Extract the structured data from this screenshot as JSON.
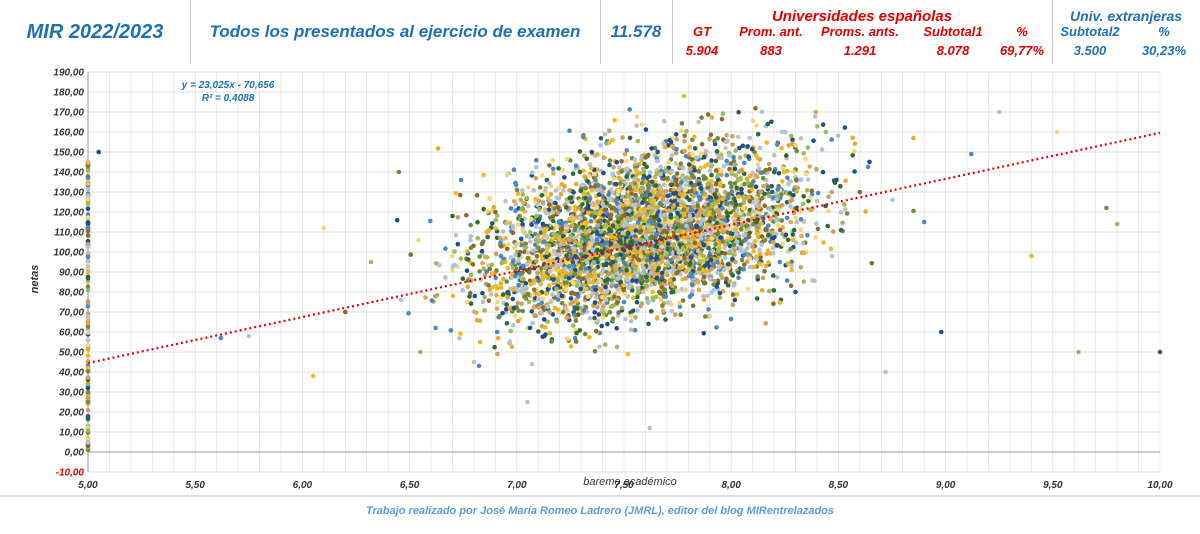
{
  "header": {
    "title": "MIR 2022/2023",
    "subtitle": "Todos los presentados al ejercicio de examen",
    "total": "11.578",
    "spanish_group": {
      "label": "Universidades españolas",
      "columns": [
        {
          "label": "GT",
          "value": "5.904"
        },
        {
          "label": "Prom. ant.",
          "value": "883"
        },
        {
          "label": "Proms. ants.",
          "value": "1.291"
        },
        {
          "label": "Subtotal1",
          "value": "8.078"
        },
        {
          "label": "%",
          "value": "69,77%"
        }
      ]
    },
    "foreign_group": {
      "label": "Univ. extranjeras",
      "columns": [
        {
          "label": "Subtotal2",
          "value": "3.500"
        },
        {
          "label": "%",
          "value": "30,23%"
        }
      ]
    },
    "colors": {
      "blue": "#1f6fb5",
      "red": "#e00000"
    }
  },
  "chart_data": {
    "type": "scatter",
    "xlabel": "baremo académico",
    "ylabel": "netas",
    "xlim": [
      5.0,
      10.0
    ],
    "ylim": [
      -10.0,
      190.0
    ],
    "x_ticks": [
      "5,00",
      "5,50",
      "6,00",
      "6,50",
      "7,00",
      "7,50",
      "8,00",
      "8,50",
      "9,00",
      "9,50",
      "10,00"
    ],
    "y_ticks": [
      "-10,00",
      "0,00",
      "10,00",
      "20,00",
      "30,00",
      "40,00",
      "50,00",
      "60,00",
      "70,00",
      "80,00",
      "90,00",
      "100,00",
      "110,00",
      "120,00",
      "130,00",
      "140,00",
      "150,00",
      "160,00",
      "170,00",
      "180,00",
      "190,00"
    ],
    "grid": true,
    "trendline": {
      "slope": 23.025,
      "intercept": -70.656,
      "r2": 0.4088,
      "equation_label": "y = 23,025x - 70,656",
      "r2_label": "R² = 0,4088",
      "color": "#e00000"
    },
    "point_colors": [
      "#1f4e8c",
      "#4a86c8",
      "#a9c4e6",
      "#f2b81c",
      "#f7d774",
      "#c8a060",
      "#6e8b3d",
      "#9bbb59",
      "#2e6b2e",
      "#8c6a2e",
      "#c0c0c0",
      "#e8a838"
    ],
    "points": [
      [
        5.05,
        150
      ],
      [
        5.62,
        57
      ],
      [
        5.75,
        58
      ],
      [
        6.05,
        38
      ],
      [
        6.1,
        112
      ],
      [
        6.32,
        95
      ],
      [
        6.45,
        140
      ],
      [
        6.55,
        50
      ],
      [
        6.7,
        118
      ],
      [
        6.9,
        120
      ],
      [
        7.05,
        25
      ],
      [
        7.22,
        104
      ],
      [
        7.35,
        150
      ],
      [
        7.5,
        75
      ],
      [
        7.62,
        12
      ],
      [
        7.78,
        178
      ],
      [
        7.9,
        68
      ],
      [
        8.02,
        95
      ],
      [
        8.15,
        140
      ],
      [
        8.28,
        158
      ],
      [
        8.45,
        113
      ],
      [
        8.6,
        130
      ],
      [
        8.72,
        40
      ],
      [
        8.85,
        157
      ],
      [
        8.98,
        60
      ],
      [
        9.12,
        149
      ],
      [
        9.25,
        170
      ],
      [
        9.4,
        98
      ],
      [
        9.52,
        160
      ],
      [
        9.62,
        50
      ],
      [
        9.75,
        122
      ],
      [
        9.8,
        114
      ],
      [
        10.0,
        50
      ],
      [
        6.2,
        70
      ],
      [
        6.8,
        45
      ],
      [
        7.4,
        130
      ],
      [
        8.3,
        80
      ],
      [
        8.9,
        115
      ]
    ]
  },
  "footer": {
    "credit": "Trabajo realizado por José María Romeo Ladrero (JMRL), editor del blog MIRentrelazados"
  }
}
